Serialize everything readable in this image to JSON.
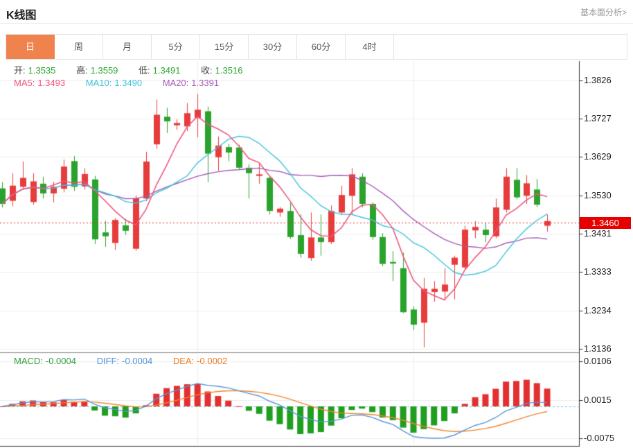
{
  "header": {
    "title": "K线图",
    "link_label": "基本面分析>"
  },
  "tabs": {
    "items": [
      "日",
      "周",
      "月",
      "5分",
      "15分",
      "30分",
      "60分",
      "4时"
    ],
    "active_index": 0,
    "active_bg": "#f0824e"
  },
  "ohlc_legend": {
    "open_label": "开:",
    "open": "1.3535",
    "high_label": "高:",
    "high": "1.3559",
    "low_label": "低:",
    "low": "1.3491",
    "close_label": "收:",
    "close": "1.3516",
    "value_color": "#2ca52c",
    "label_color": "#444444"
  },
  "ma_legend": {
    "ma5_label": "MA5:",
    "ma5": "1.3493",
    "ma5_color": "#ee5580",
    "ma10_label": "MA10:",
    "ma10": "1.3490",
    "ma10_color": "#3fc3dc",
    "ma20_label": "MA20:",
    "ma20": "1.3391",
    "ma20_color": "#a55ab4"
  },
  "macd_legend": {
    "macd_label": "MACD:",
    "macd": "-0.0004",
    "macd_color": "#2f9e3f",
    "diff_label": "DIFF:",
    "diff": "-0.0004",
    "diff_color": "#4f94d8",
    "dea_label": "DEA:",
    "dea": "-0.0002",
    "dea_color": "#ef7c25"
  },
  "price_badge": {
    "value": "1.3460",
    "bg": "#e60000"
  },
  "colors": {
    "up_candle": "#e73c3c",
    "down_candle": "#2aa32d",
    "hist_up": "#e23030",
    "hist_down": "#1f9e1f",
    "grid": "#ededed",
    "axis": "#333333",
    "separator": "#888888",
    "price_line": "#e62222",
    "zero_line": "#7ec4e4",
    "diff_line": "#5596d8",
    "dea_line": "#ef8430"
  },
  "chart_data": {
    "type": "candlestick",
    "panels": [
      "price",
      "macd"
    ],
    "title": "K线图 (日)",
    "y_ticks": [
      "1.3826",
      "1.3727",
      "1.3629",
      "1.3530",
      "1.3431",
      "1.3333",
      "1.3234",
      "1.3136"
    ],
    "macd_y_ticks": [
      "0.0106",
      "0.0015",
      "-0.0075"
    ],
    "ylim": [
      1.3136,
      1.3826
    ],
    "current_price": 1.346,
    "grid": true,
    "v_grid_candle_indices": [
      19,
      40
    ],
    "ma_periods": [
      5,
      10,
      20
    ],
    "macd_params": [
      12,
      26,
      9
    ],
    "candles_format": [
      "open",
      "high",
      "low",
      "close"
    ],
    "candles": [
      [
        1.3548,
        1.3564,
        1.3499,
        1.3508
      ],
      [
        1.3516,
        1.3587,
        1.3502,
        1.3555
      ],
      [
        1.3552,
        1.3617,
        1.3546,
        1.3575
      ],
      [
        1.3513,
        1.3587,
        1.3506,
        1.3566
      ],
      [
        1.356,
        1.3578,
        1.3522,
        1.3535
      ],
      [
        1.3535,
        1.3565,
        1.3512,
        1.3552
      ],
      [
        1.3547,
        1.3622,
        1.3538,
        1.3604
      ],
      [
        1.3618,
        1.3631,
        1.3542,
        1.3552
      ],
      [
        1.3553,
        1.36,
        1.3545,
        1.3585
      ],
      [
        1.3571,
        1.358,
        1.3405,
        1.3417
      ],
      [
        1.3435,
        1.3465,
        1.3398,
        1.3425
      ],
      [
        1.3408,
        1.3472,
        1.339,
        1.3467
      ],
      [
        1.3453,
        1.347,
        1.3428,
        1.3439
      ],
      [
        1.3393,
        1.353,
        1.3388,
        1.3523
      ],
      [
        1.3522,
        1.3642,
        1.3515,
        1.3617
      ],
      [
        1.3661,
        1.3776,
        1.365,
        1.3737
      ],
      [
        1.3732,
        1.3755,
        1.369,
        1.372
      ],
      [
        1.371,
        1.3725,
        1.3698,
        1.3716
      ],
      [
        1.3707,
        1.3767,
        1.3695,
        1.3741
      ],
      [
        1.3729,
        1.379,
        1.3679,
        1.375
      ],
      [
        1.3746,
        1.3758,
        1.3564,
        1.3637
      ],
      [
        1.3628,
        1.3681,
        1.3593,
        1.3658
      ],
      [
        1.3654,
        1.3662,
        1.3618,
        1.364
      ],
      [
        1.3653,
        1.366,
        1.3595,
        1.3601
      ],
      [
        1.3601,
        1.361,
        1.3522,
        1.3587
      ],
      [
        1.358,
        1.3612,
        1.356,
        1.3584
      ],
      [
        1.3575,
        1.358,
        1.3481,
        1.349
      ],
      [
        1.3486,
        1.35,
        1.3475,
        1.3496
      ],
      [
        1.349,
        1.3511,
        1.3418,
        1.3423
      ],
      [
        1.3428,
        1.3481,
        1.337,
        1.338
      ],
      [
        1.3369,
        1.3486,
        1.3362,
        1.3422
      ],
      [
        1.3422,
        1.3481,
        1.3375,
        1.341
      ],
      [
        1.341,
        1.3504,
        1.3405,
        1.349
      ],
      [
        1.3486,
        1.3555,
        1.348,
        1.3531
      ],
      [
        1.3529,
        1.36,
        1.3481,
        1.3584
      ],
      [
        1.3578,
        1.3587,
        1.3499,
        1.3508
      ],
      [
        1.3508,
        1.3512,
        1.3416,
        1.3423
      ],
      [
        1.3423,
        1.3433,
        1.3348,
        1.3354
      ],
      [
        1.3359,
        1.3387,
        1.331,
        1.3355
      ],
      [
        1.3343,
        1.3383,
        1.3228,
        1.323
      ],
      [
        1.3237,
        1.3245,
        1.3184,
        1.3198
      ],
      [
        1.3203,
        1.3318,
        1.314,
        1.329
      ],
      [
        1.3282,
        1.331,
        1.3257,
        1.329
      ],
      [
        1.3283,
        1.3343,
        1.326,
        1.3301
      ],
      [
        1.3352,
        1.3375,
        1.3263,
        1.337
      ],
      [
        1.3345,
        1.3452,
        1.334,
        1.3442
      ],
      [
        1.344,
        1.3464,
        1.342,
        1.3449
      ],
      [
        1.3442,
        1.3459,
        1.341,
        1.3428
      ],
      [
        1.3425,
        1.3522,
        1.342,
        1.3499
      ],
      [
        1.3493,
        1.36,
        1.3486,
        1.3578
      ],
      [
        1.357,
        1.36,
        1.352,
        1.3525
      ],
      [
        1.3529,
        1.3582,
        1.3508,
        1.3561
      ],
      [
        1.3545,
        1.3572,
        1.35,
        1.3506
      ],
      [
        1.3452,
        1.3481,
        1.3437,
        1.3464
      ]
    ]
  }
}
